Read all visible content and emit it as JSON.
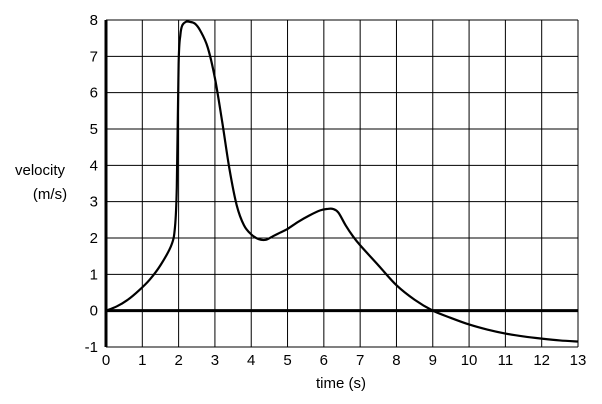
{
  "chart_data": {
    "type": "line",
    "title": "",
    "xlabel": "time (s)",
    "ylabel_lines": [
      "velocity",
      "(m/s)"
    ],
    "xlim": [
      0,
      13
    ],
    "ylim": [
      -1,
      8
    ],
    "grid": true,
    "x_ticks": [
      "0",
      "1",
      "2",
      "3",
      "4",
      "5",
      "6",
      "7",
      "8",
      "9",
      "10",
      "11",
      "12",
      "13"
    ],
    "y_ticks": [
      "8",
      "7",
      "6",
      "5",
      "4",
      "3",
      "2",
      "1",
      "0",
      "-1"
    ],
    "series": [
      {
        "x": [
          0,
          0.3,
          0.6,
          0.9,
          1.2,
          1.5,
          1.8,
          1.9,
          1.95,
          2.0,
          2.05,
          2.1,
          2.2,
          2.3,
          2.45,
          2.6,
          2.8,
          3.0,
          3.2,
          3.4,
          3.6,
          3.8,
          4.0,
          4.2,
          4.4,
          4.6,
          4.8,
          5.0,
          5.3,
          5.6,
          5.9,
          6.1,
          6.25,
          6.4,
          6.6,
          6.8,
          7.0,
          7.5,
          8.0,
          8.5,
          9.0,
          9.5,
          10.0,
          10.5,
          11.0,
          11.5,
          12.0,
          12.5,
          13.0
        ],
        "y": [
          0,
          0.12,
          0.3,
          0.55,
          0.85,
          1.25,
          1.8,
          2.3,
          3.4,
          6.8,
          7.6,
          7.85,
          7.95,
          7.95,
          7.9,
          7.7,
          7.25,
          6.4,
          5.2,
          3.9,
          2.9,
          2.35,
          2.1,
          1.97,
          1.95,
          2.05,
          2.15,
          2.25,
          2.45,
          2.62,
          2.76,
          2.8,
          2.8,
          2.7,
          2.35,
          2.05,
          1.8,
          1.25,
          0.7,
          0.3,
          0.0,
          -0.2,
          -0.38,
          -0.52,
          -0.63,
          -0.71,
          -0.77,
          -0.82,
          -0.85
        ]
      }
    ]
  }
}
